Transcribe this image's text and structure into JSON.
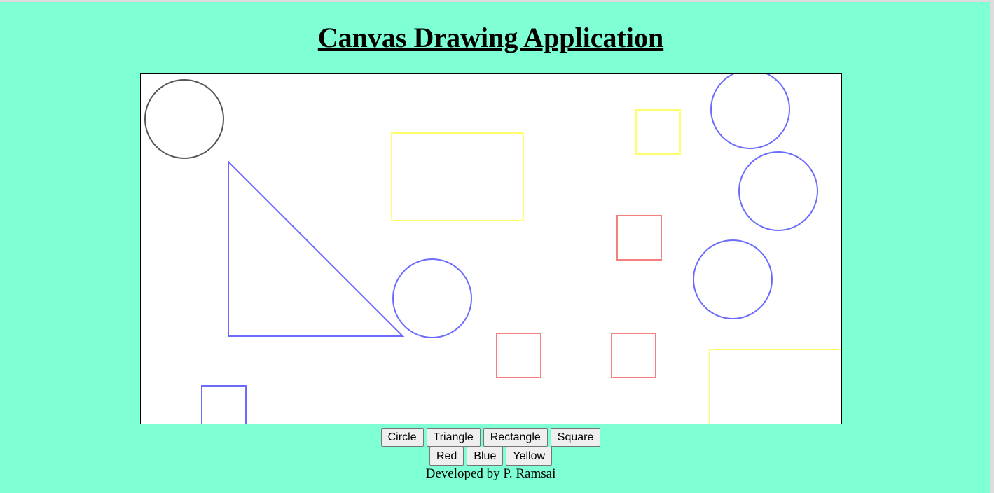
{
  "page": {
    "title": "Canvas Drawing Application",
    "footer": "Developed by P. Ramsai",
    "background_color": "#7fffd4"
  },
  "shape_buttons": [
    "Circle",
    "Triangle",
    "Rectangle",
    "Square"
  ],
  "color_buttons": [
    "Red",
    "Blue",
    "Yellow"
  ],
  "canvas": {
    "background_color": "#ffffff",
    "palette": {
      "gray": "#555555",
      "blue": "#6b6bff",
      "yellow": "#ffff6b",
      "red": "#f57f7f"
    }
  }
}
